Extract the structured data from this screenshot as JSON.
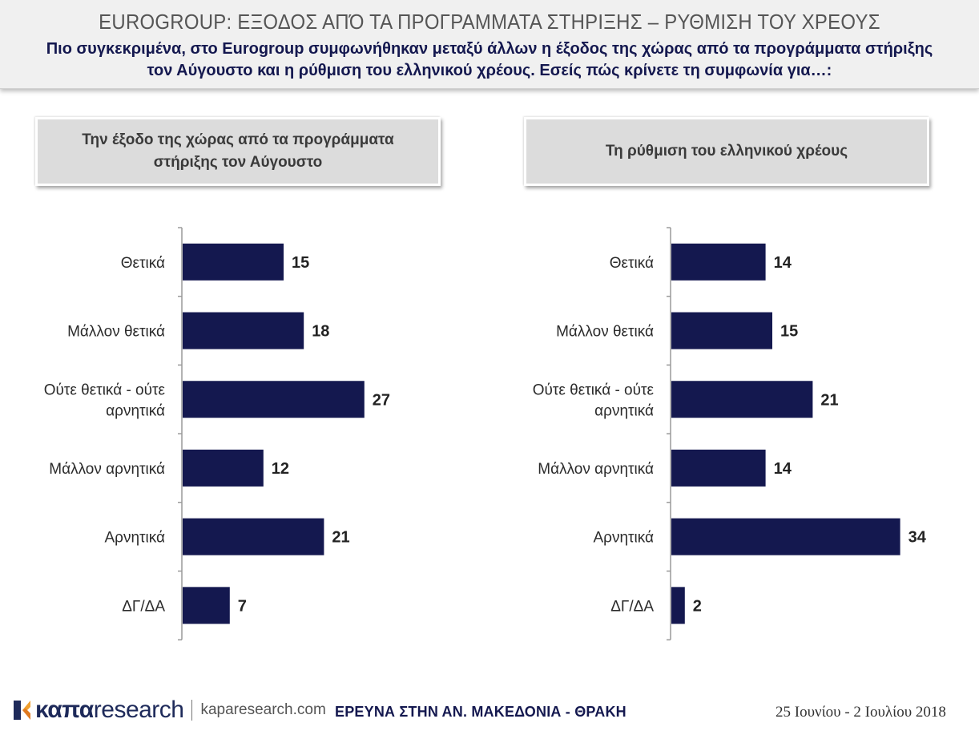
{
  "header": {
    "title": "EUROGROUP: ΕΞΟΔΟΣ ΑΠΌ ΤΑ ΠΡΟΓΡΑΜΜΑΤΑ ΣΤΗΡΙΞΗΣ – ΡΥΘΜΙΣΗ ΤΟΥ ΧΡΕΟΥΣ",
    "subtitle_line1": "Πιο συγκεκριμένα, στο Eurogroup συμφωνήθηκαν μεταξύ άλλων η έξοδος της χώρας από τα προγράμματα στήριξης",
    "subtitle_line2": "τον Αύγουστο και η ρύθμιση του ελληνικού χρέους. Εσείς πώς κρίνετε τη συμφωνία για…:"
  },
  "chart_data": [
    {
      "type": "bar",
      "orientation": "horizontal",
      "title_line1": "Την έξοδο της χώρας από τα προγράμματα",
      "title_line2": "στήριξης τον Αύγουστο",
      "categories": [
        "Θετικά",
        "Μάλλον θετικά",
        "Ούτε θετικά - ούτε αρνητικά",
        "Μάλλον αρνητικά",
        "Αρνητικά",
        "ΔΓ/ΔΑ"
      ],
      "category_lines": [
        [
          "Θετικά"
        ],
        [
          "Μάλλον θετικά"
        ],
        [
          "Ούτε θετικά - ούτε",
          "αρνητικά"
        ],
        [
          "Μάλλον αρνητικά"
        ],
        [
          "Αρνητικά"
        ],
        [
          "ΔΓ/ΔΑ"
        ]
      ],
      "values": [
        15,
        18,
        27,
        12,
        21,
        7
      ],
      "xlim": [
        0,
        34
      ],
      "bar_color": "#14184f",
      "grid": false,
      "legend": "none"
    },
    {
      "type": "bar",
      "orientation": "horizontal",
      "title_line1": "Τη ρύθμιση του ελληνικού χρέους",
      "title_line2": "",
      "categories": [
        "Θετικά",
        "Μάλλον θετικά",
        "Ούτε θετικά - ούτε αρνητικά",
        "Μάλλον αρνητικά",
        "Αρνητικά",
        "ΔΓ/ΔΑ"
      ],
      "category_lines": [
        [
          "Θετικά"
        ],
        [
          "Μάλλον θετικά"
        ],
        [
          "Ούτε θετικά - ούτε",
          "αρνητικά"
        ],
        [
          "Μάλλον αρνητικά"
        ],
        [
          "Αρνητικά"
        ],
        [
          "ΔΓ/ΔΑ"
        ]
      ],
      "values": [
        14,
        15,
        21,
        14,
        34,
        2
      ],
      "xlim": [
        0,
        34
      ],
      "bar_color": "#14184f",
      "grid": false,
      "legend": "none"
    }
  ],
  "footer": {
    "logo_part1": "καπα",
    "logo_part2": "research",
    "url": "kaparesearch.com",
    "survey": "ΕΡΕΥΝΑ ΣΤΗΝ ΑΝ. ΜΑΚΕΔΟΝΙΑ - ΘΡΑΚΗ",
    "date": "25 Ιουνίου - 2 Ιουλίου 2018"
  },
  "colors": {
    "bar": "#14184f",
    "header_bg": "#f0f0f0",
    "panel_title_bg": "#dcdcdc"
  }
}
